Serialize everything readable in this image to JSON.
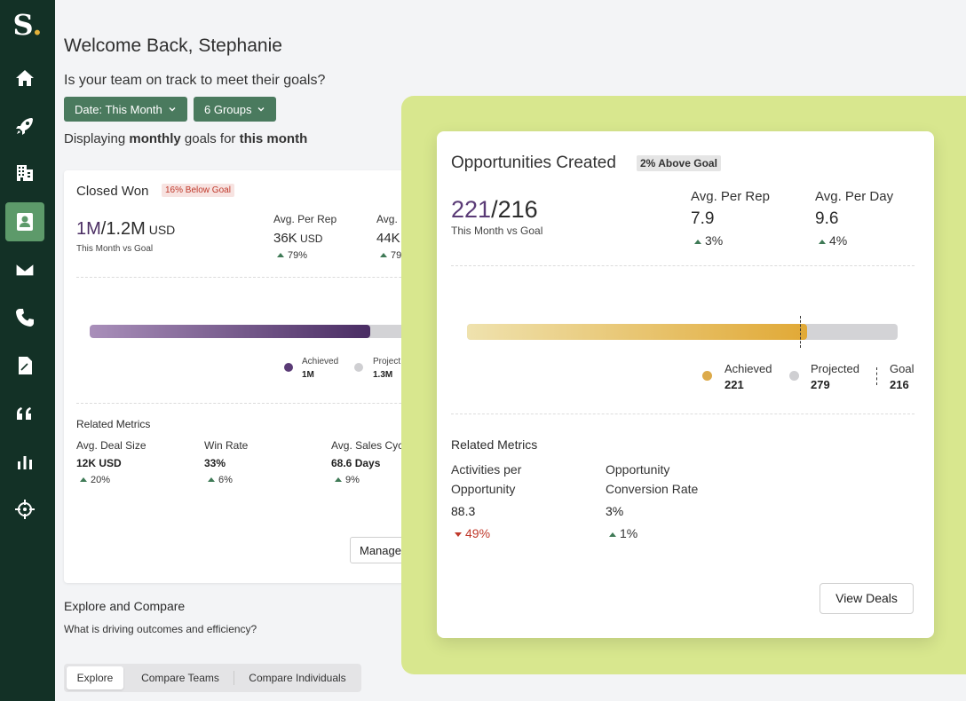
{
  "sidebar": {
    "logo": "S",
    "logo_dot": ".",
    "items": [
      {
        "icon": "home-icon"
      },
      {
        "icon": "rocket-icon"
      },
      {
        "icon": "building-icon"
      },
      {
        "icon": "user-icon",
        "active": true
      },
      {
        "icon": "mail-icon"
      },
      {
        "icon": "phone-icon"
      },
      {
        "icon": "document-icon"
      },
      {
        "icon": "quote-icon"
      },
      {
        "icon": "bar-chart-icon"
      },
      {
        "icon": "crosshair-icon"
      }
    ]
  },
  "header": {
    "welcome": "Welcome Back, Stephanie",
    "question": "Is your team on track to meet their goals?",
    "date_filter": "Date: This Month",
    "groups_filter": "6 Groups",
    "displaying_prefix": "Displaying ",
    "displaying_period": "monthly",
    "displaying_mid": " goals for ",
    "displaying_range": "this month"
  },
  "closed_won": {
    "title": "Closed Won",
    "badge": "16% Below Goal",
    "achieved": "1M",
    "goal": "/1.2M",
    "unit": " USD",
    "subtitle": "This Month vs Goal",
    "avg_per_rep_label": "Avg. Per Rep",
    "avg_per_rep_value": "36K",
    "avg_per_rep_unit": " USD",
    "avg_per_rep_delta": "79%",
    "avg_per_day_label": "Avg.",
    "avg_per_day_value": "44K",
    "avg_per_day_delta": "79",
    "progress": 0.79,
    "legend_achieved_label": "Achieved",
    "legend_achieved_value": "1M",
    "legend_projected_label": "Project",
    "legend_projected_value": "1.3M",
    "related_title": "Related Metrics",
    "metrics": [
      {
        "label": "Avg. Deal Size",
        "value": "12K USD",
        "delta": "20%"
      },
      {
        "label": "Win Rate",
        "value": "33%",
        "delta": "6%"
      },
      {
        "label": "Avg. Sales Cyc",
        "value": "68.6 Days",
        "delta": "9%"
      }
    ],
    "manage_label": "Manage"
  },
  "explore": {
    "title": "Explore and Compare",
    "subtitle": "What is driving outcomes and efficiency?",
    "tabs": [
      "Explore",
      "Compare Teams",
      "Compare Individuals"
    ]
  },
  "opportunities": {
    "title": "Opportunities Created",
    "badge": "2% Above Goal",
    "achieved": "221",
    "goal": "/216",
    "subtitle": "This Month vs Goal",
    "avg_per_rep_label": "Avg. Per Rep",
    "avg_per_rep_value": "7.9",
    "avg_per_rep_delta": "3%",
    "avg_per_day_label": "Avg. Per Day",
    "avg_per_day_value": "9.6",
    "avg_per_day_delta": "4%",
    "progress": 0.79,
    "legend_achieved_label": "Achieved",
    "legend_achieved_value": "221",
    "legend_projected_label": "Projected",
    "legend_projected_value": "279",
    "legend_goal_label": "Goal",
    "legend_goal_value": "216",
    "related_title": "Related Metrics",
    "metric1_label": "Activities per Opportunity",
    "metric1_value": "88.3",
    "metric1_delta": "49%",
    "metric2_label": "Opportunity Conversion Rate",
    "metric2_value": "3%",
    "metric2_delta": "1%",
    "view_deals_label": "View Deals"
  },
  "colors": {
    "sidebar": "#133126",
    "sidebar_active": "#5d9a6a",
    "filter_button": "#4a7a5e",
    "highlight": "#d8e78e",
    "positive": "#3f7a56",
    "negative": "#c0392b",
    "closed_won_bar": "#4a2d64",
    "opportunities_bar": "#e1a936"
  }
}
